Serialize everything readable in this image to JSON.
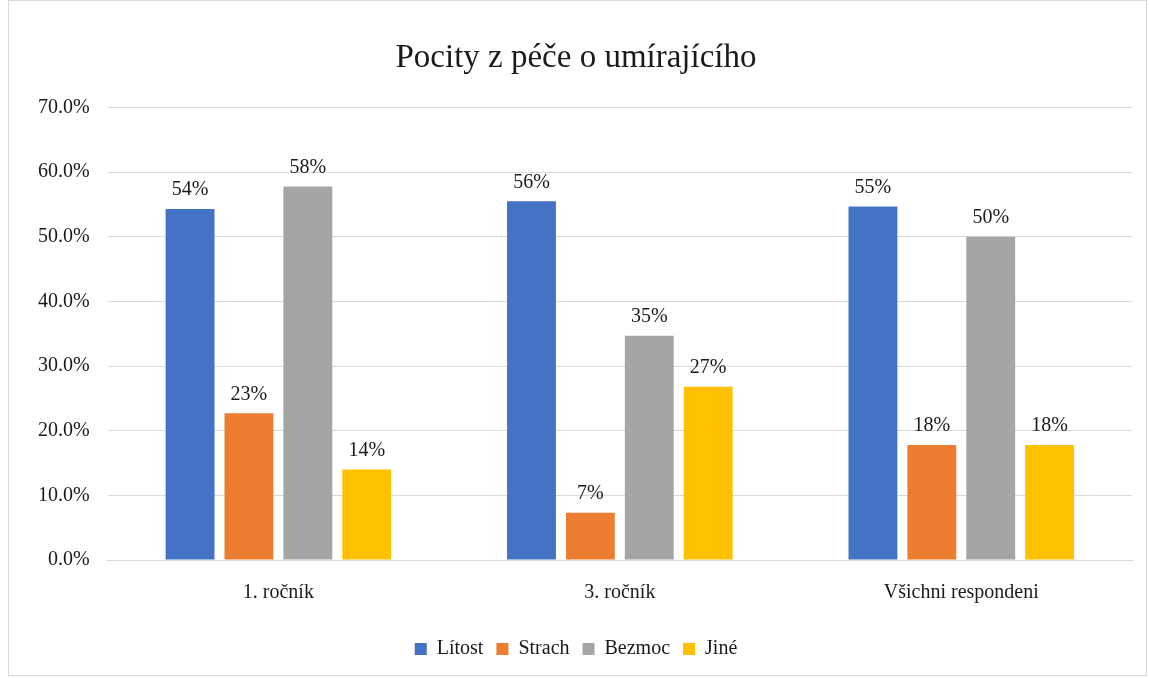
{
  "chart_data": {
    "type": "bar",
    "title": "Pocity z péče o umírajícího",
    "categories": [
      "1. ročník",
      "3. ročník",
      "Všichni respondeni"
    ],
    "series": [
      {
        "name": "Lítost",
        "color": "#4472c4",
        "values": [
          54.3,
          55.5,
          54.7
        ],
        "value_labels": [
          "54%",
          "56%",
          "55%"
        ]
      },
      {
        "name": "Strach",
        "color": "#ed7d31",
        "values": [
          22.7,
          7.3,
          17.8
        ],
        "value_labels": [
          "23%",
          "7%",
          "18%"
        ]
      },
      {
        "name": "Bezmoc",
        "color": "#a5a5a5",
        "values": [
          57.8,
          34.7,
          50.0
        ],
        "value_labels": [
          "58%",
          "35%",
          "50%"
        ]
      },
      {
        "name": "Jiné",
        "color": "#ffc000",
        "values": [
          14.0,
          26.8,
          17.8
        ],
        "value_labels": [
          "14%",
          "27%",
          "18%"
        ]
      }
    ],
    "ylim": [
      0,
      70
    ],
    "yticks": [
      {
        "value": 0,
        "label": "0.0%"
      },
      {
        "value": 10,
        "label": "10.0%"
      },
      {
        "value": 20,
        "label": "20.0%"
      },
      {
        "value": 30,
        "label": "30.0%"
      },
      {
        "value": 40,
        "label": "40.0%"
      },
      {
        "value": 50,
        "label": "50.0%"
      },
      {
        "value": 60,
        "label": "60.0%"
      },
      {
        "value": 70,
        "label": "70.0%"
      }
    ],
    "grid": "y",
    "legend": "bottom"
  }
}
